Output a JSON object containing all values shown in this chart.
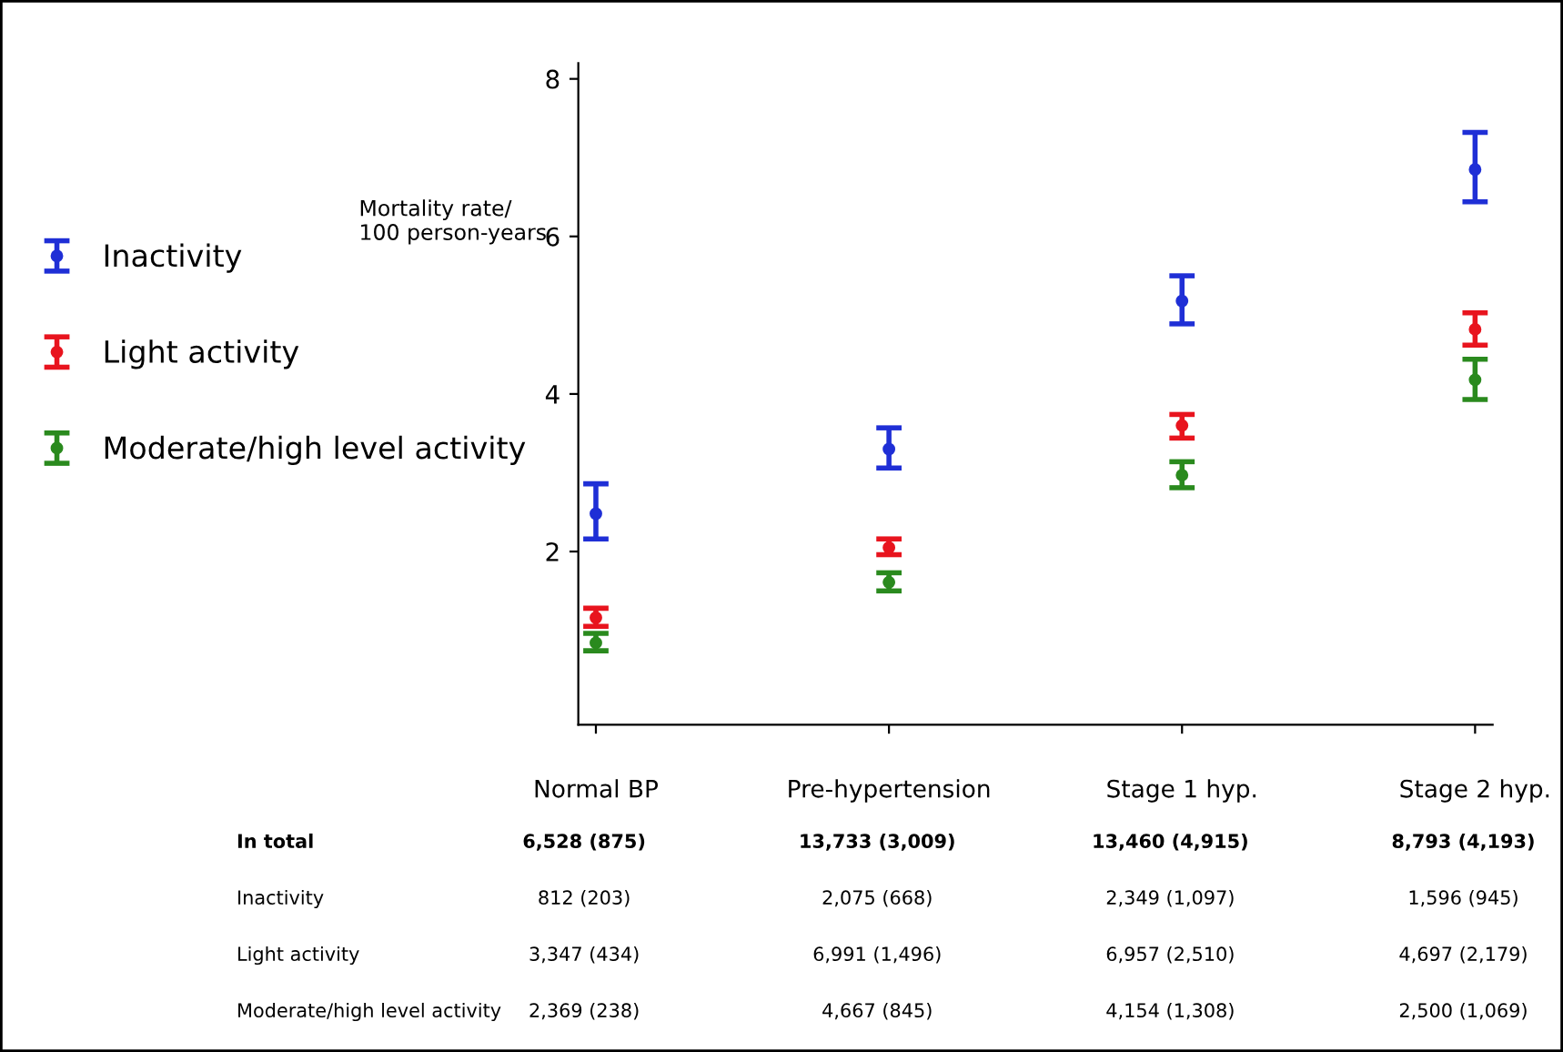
{
  "chart_data": {
    "type": "scatter",
    "ylabel": "Mortality rate/\n100 person-years",
    "categories": [
      "Normal BP",
      "Pre-hypertension",
      "Stage 1 hyp.",
      "Stage 2 hyp."
    ],
    "series": [
      {
        "name": "Inactivity",
        "color": "#1f2fd6",
        "values": [
          2.48,
          3.3,
          5.18,
          6.85
        ],
        "errors": [
          [
            2.16,
            2.86
          ],
          [
            3.06,
            3.57
          ],
          [
            4.89,
            5.5
          ],
          [
            6.44,
            7.32
          ]
        ]
      },
      {
        "name": "Light activity",
        "color": "#e8141e",
        "values": [
          1.16,
          2.05,
          3.6,
          4.82
        ],
        "errors": [
          [
            1.05,
            1.28
          ],
          [
            1.96,
            2.16
          ],
          [
            3.44,
            3.74
          ],
          [
            4.62,
            5.03
          ]
        ]
      },
      {
        "name": "Moderate/high level activity",
        "color": "#2a8a1e",
        "values": [
          0.84,
          1.61,
          2.97,
          4.18
        ],
        "errors": [
          [
            0.74,
            0.96
          ],
          [
            1.5,
            1.73
          ],
          [
            2.81,
            3.14
          ],
          [
            3.93,
            4.44
          ]
        ]
      }
    ],
    "ylim": [
      -0.2,
      8.2
    ],
    "yticks": [
      2,
      4,
      6,
      8
    ],
    "grid": false,
    "legend": "left",
    "marker": "circle",
    "annotations": [
      "In total",
      "6,528 (875)",
      "13,733 (3,009)",
      "13,460 (4,915)",
      "8,793 (4,193)",
      "Inactivity",
      "812 (203)",
      "2,075 (668)",
      "2,349 (1,097)",
      "1,596 (945)",
      "Light activity",
      "3,347 (434)",
      "6,991 (1,496)",
      "6,957 (2,510)",
      "4,697 (2,179)",
      "Moderate/high level activity",
      "2,369 (238)",
      "4,667 (845)",
      "4,154 (1,308)",
      "2,500 (1,069)"
    ]
  }
}
